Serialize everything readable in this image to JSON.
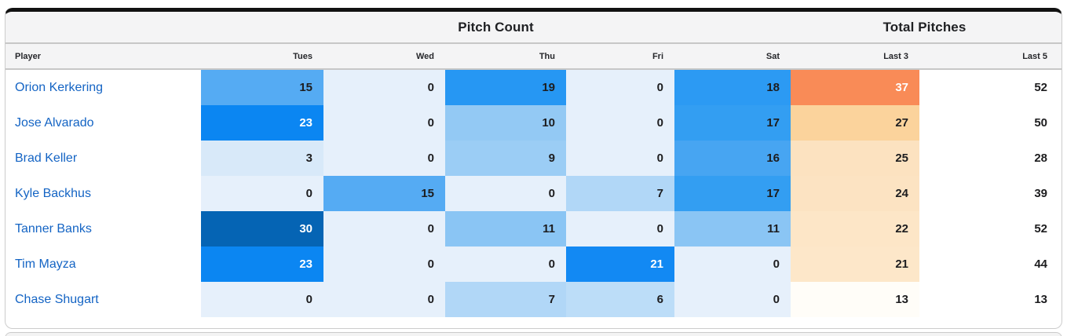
{
  "card": {
    "group_headers": [
      {
        "label": "Pitch Count"
      },
      {
        "label": "Total Pitches"
      }
    ],
    "columns": [
      {
        "key": "player",
        "label": "Player"
      },
      {
        "key": "tues",
        "label": "Tues"
      },
      {
        "key": "wed",
        "label": "Wed"
      },
      {
        "key": "thu",
        "label": "Thu"
      },
      {
        "key": "fri",
        "label": "Fri"
      },
      {
        "key": "sat",
        "label": "Sat"
      },
      {
        "key": "last3",
        "label": "Last 3"
      },
      {
        "key": "last5",
        "label": "Last 5"
      }
    ],
    "rows": [
      {
        "player": "Orion Kerkering",
        "cells": [
          {
            "col": "tues",
            "value": "15",
            "bg": "#55abf3",
            "fg": "#1d1d1f"
          },
          {
            "col": "wed",
            "value": "0",
            "bg": "#e6f0fb",
            "fg": "#1d1d1f"
          },
          {
            "col": "thu",
            "value": "19",
            "bg": "#2697f3",
            "fg": "#1d1d1f"
          },
          {
            "col": "fri",
            "value": "0",
            "bg": "#e6f0fb",
            "fg": "#1d1d1f"
          },
          {
            "col": "sat",
            "value": "18",
            "bg": "#2c9af3",
            "fg": "#1d1d1f"
          },
          {
            "col": "last3",
            "value": "37",
            "bg": "#f98b57",
            "fg": "#ffffff"
          },
          {
            "col": "last5",
            "value": "52",
            "bg": "#ffffff",
            "fg": "#1d1d1f"
          }
        ]
      },
      {
        "player": "Jose Alvarado",
        "cells": [
          {
            "col": "tues",
            "value": "23",
            "bg": "#0b86f2",
            "fg": "#ffffff"
          },
          {
            "col": "wed",
            "value": "0",
            "bg": "#e6f0fb",
            "fg": "#1d1d1f"
          },
          {
            "col": "thu",
            "value": "10",
            "bg": "#93c9f4",
            "fg": "#1d1d1f"
          },
          {
            "col": "fri",
            "value": "0",
            "bg": "#e6f0fb",
            "fg": "#1d1d1f"
          },
          {
            "col": "sat",
            "value": "17",
            "bg": "#339ef2",
            "fg": "#1d1d1f"
          },
          {
            "col": "last3",
            "value": "27",
            "bg": "#fbd39c",
            "fg": "#1d1d1f"
          },
          {
            "col": "last5",
            "value": "50",
            "bg": "#ffffff",
            "fg": "#1d1d1f"
          }
        ]
      },
      {
        "player": "Brad Keller",
        "cells": [
          {
            "col": "tues",
            "value": "3",
            "bg": "#d8e9f9",
            "fg": "#1d1d1f"
          },
          {
            "col": "wed",
            "value": "0",
            "bg": "#e6f0fb",
            "fg": "#1d1d1f"
          },
          {
            "col": "thu",
            "value": "9",
            "bg": "#9bcdf5",
            "fg": "#1d1d1f"
          },
          {
            "col": "fri",
            "value": "0",
            "bg": "#e6f0fb",
            "fg": "#1d1d1f"
          },
          {
            "col": "sat",
            "value": "16",
            "bg": "#47a5f2",
            "fg": "#1d1d1f"
          },
          {
            "col": "last3",
            "value": "25",
            "bg": "#fce2c0",
            "fg": "#1d1d1f"
          },
          {
            "col": "last5",
            "value": "28",
            "bg": "#ffffff",
            "fg": "#1d1d1f"
          }
        ]
      },
      {
        "player": "Kyle Backhus",
        "cells": [
          {
            "col": "tues",
            "value": "0",
            "bg": "#e6f0fb",
            "fg": "#1d1d1f"
          },
          {
            "col": "wed",
            "value": "15",
            "bg": "#55abf3",
            "fg": "#1d1d1f"
          },
          {
            "col": "thu",
            "value": "0",
            "bg": "#e6f0fb",
            "fg": "#1d1d1f"
          },
          {
            "col": "fri",
            "value": "7",
            "bg": "#b1d7f7",
            "fg": "#1d1d1f"
          },
          {
            "col": "sat",
            "value": "17",
            "bg": "#339ef2",
            "fg": "#1d1d1f"
          },
          {
            "col": "last3",
            "value": "24",
            "bg": "#fce3c2",
            "fg": "#1d1d1f"
          },
          {
            "col": "last5",
            "value": "39",
            "bg": "#ffffff",
            "fg": "#1d1d1f"
          }
        ]
      },
      {
        "player": "Tanner Banks",
        "cells": [
          {
            "col": "tues",
            "value": "30",
            "bg": "#0564b4",
            "fg": "#ffffff"
          },
          {
            "col": "wed",
            "value": "0",
            "bg": "#e6f0fb",
            "fg": "#1d1d1f"
          },
          {
            "col": "thu",
            "value": "11",
            "bg": "#8ac5f4",
            "fg": "#1d1d1f"
          },
          {
            "col": "fri",
            "value": "0",
            "bg": "#e6f0fb",
            "fg": "#1d1d1f"
          },
          {
            "col": "sat",
            "value": "11",
            "bg": "#8ac5f4",
            "fg": "#1d1d1f"
          },
          {
            "col": "last3",
            "value": "22",
            "bg": "#fde6c7",
            "fg": "#1d1d1f"
          },
          {
            "col": "last5",
            "value": "52",
            "bg": "#ffffff",
            "fg": "#1d1d1f"
          }
        ]
      },
      {
        "player": "Tim Mayza",
        "cells": [
          {
            "col": "tues",
            "value": "23",
            "bg": "#0b86f2",
            "fg": "#ffffff"
          },
          {
            "col": "wed",
            "value": "0",
            "bg": "#e6f0fb",
            "fg": "#1d1d1f"
          },
          {
            "col": "thu",
            "value": "0",
            "bg": "#e6f0fb",
            "fg": "#1d1d1f"
          },
          {
            "col": "fri",
            "value": "21",
            "bg": "#1289f3",
            "fg": "#ffffff"
          },
          {
            "col": "sat",
            "value": "0",
            "bg": "#e6f0fb",
            "fg": "#1d1d1f"
          },
          {
            "col": "last3",
            "value": "21",
            "bg": "#fde7c9",
            "fg": "#1d1d1f"
          },
          {
            "col": "last5",
            "value": "44",
            "bg": "#ffffff",
            "fg": "#1d1d1f"
          }
        ]
      },
      {
        "player": "Chase Shugart",
        "cells": [
          {
            "col": "tues",
            "value": "0",
            "bg": "#e6f0fb",
            "fg": "#1d1d1f"
          },
          {
            "col": "wed",
            "value": "0",
            "bg": "#e6f0fb",
            "fg": "#1d1d1f"
          },
          {
            "col": "thu",
            "value": "7",
            "bg": "#b1d7f7",
            "fg": "#1d1d1f"
          },
          {
            "col": "fri",
            "value": "6",
            "bg": "#bcddf8",
            "fg": "#1d1d1f"
          },
          {
            "col": "sat",
            "value": "0",
            "bg": "#e6f0fb",
            "fg": "#1d1d1f"
          },
          {
            "col": "last3",
            "value": "13",
            "bg": "#fffdf8",
            "fg": "#1d1d1f"
          },
          {
            "col": "last5",
            "value": "13",
            "bg": "#ffffff",
            "fg": "#1d1d1f"
          }
        ]
      }
    ]
  },
  "colors": {
    "player_link": "#1464c4",
    "card_top_bar": "#121212",
    "header_bg": "#f4f4f5",
    "header_border": "#c7c7c7",
    "last3_max": "#f98b57",
    "heat_max": "#0564b4"
  }
}
